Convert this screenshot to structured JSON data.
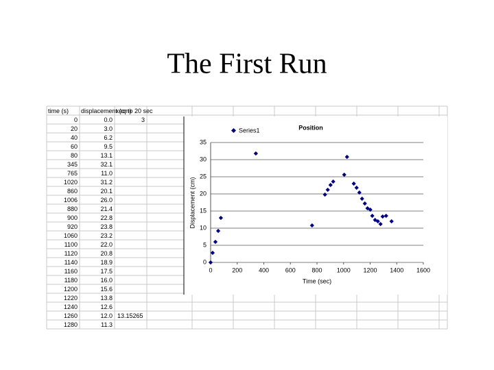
{
  "header": {
    "title": "The First Run"
  },
  "table": {
    "header": [
      "time (s)",
      "displacement (cm)",
      "xeq to 20 sec"
    ],
    "rows": [
      [
        "0",
        "0.0",
        "3"
      ],
      [
        "20",
        "3.0"
      ],
      [
        "40",
        "6.2"
      ],
      [
        "60",
        "9.5"
      ],
      [
        "80",
        "13.1"
      ],
      [
        "345",
        "32.1"
      ],
      [
        "765",
        "11.0"
      ],
      [
        "1020",
        "31.2"
      ],
      [
        "860",
        "20.1"
      ],
      [
        "1006",
        "26.0"
      ],
      [
        "880",
        "21.4"
      ],
      [
        "900",
        "22.8"
      ],
      [
        "920",
        "23.8"
      ],
      [
        "1060",
        "23.2"
      ],
      [
        "1100",
        "22.0"
      ],
      [
        "1120",
        "20.8"
      ],
      [
        "1140",
        "18.9"
      ],
      [
        "1160",
        "17.5"
      ],
      [
        "1180",
        "16.0"
      ],
      [
        "1200",
        "15.6"
      ],
      [
        "1220",
        "13.8"
      ],
      [
        "1240",
        "12.6"
      ],
      [
        "1260",
        "12.0",
        "13.15265"
      ],
      [
        "1280",
        "11.3"
      ]
    ]
  },
  "chart_data": {
    "type": "scatter",
    "title": "Position",
    "x_label": "Time (sec)",
    "y_label": "Displacement (cm)",
    "series": [
      {
        "name": "Series1",
        "color": "#000080",
        "x": [
          0,
          15,
          36,
          57,
          77,
          340,
          763,
          860,
          881,
          902,
          922,
          1005,
          1026,
          1077,
          1098,
          1119,
          1139,
          1160,
          1180,
          1201,
          1216,
          1237,
          1258,
          1278,
          1294,
          1320,
          1361
        ],
        "values": [
          0,
          2.8,
          6,
          9.2,
          13,
          31.8,
          10.8,
          19.8,
          21.2,
          22.6,
          23.6,
          25.6,
          30.8,
          23,
          21.8,
          20.4,
          18.6,
          17.2,
          15.8,
          15.4,
          13.6,
          12.4,
          12,
          11.2,
          13.4,
          13.6,
          12
        ]
      }
    ],
    "xlim": [
      0,
      1600
    ],
    "xticks": [
      0,
      200,
      400,
      600,
      800,
      1000,
      1200,
      1400,
      1600
    ],
    "ylim": [
      0,
      35
    ],
    "yticks": [
      0,
      5,
      10,
      15,
      20,
      25,
      30,
      35
    ],
    "grid": true
  }
}
